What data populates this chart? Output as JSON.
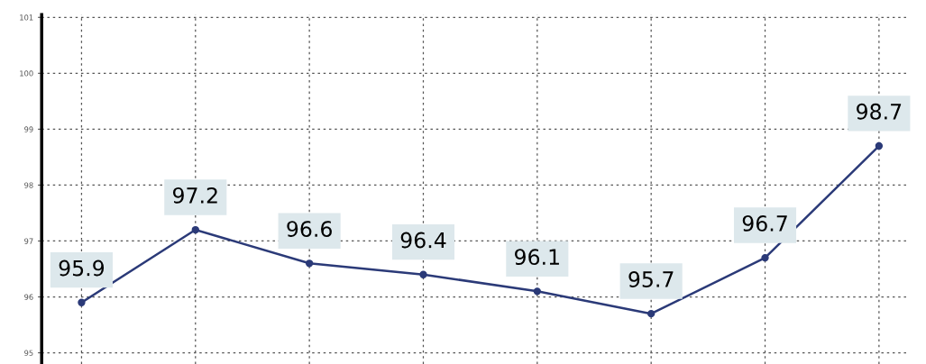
{
  "chart_data": {
    "type": "line",
    "categories": [
      null,
      null,
      null,
      null,
      null,
      null,
      null,
      null
    ],
    "series": [
      {
        "color": "#2b3a78",
        "values": [
          95.9,
          97.2,
          96.6,
          96.4,
          96.1,
          95.7,
          96.7,
          98.7
        ]
      }
    ],
    "ylim": [
      94.8,
      101.05
    ],
    "yticks": [
      95,
      96,
      97,
      98,
      99,
      100,
      101
    ],
    "data_labels": true,
    "grid": true,
    "marker": "circle",
    "line_style": "solid"
  }
}
